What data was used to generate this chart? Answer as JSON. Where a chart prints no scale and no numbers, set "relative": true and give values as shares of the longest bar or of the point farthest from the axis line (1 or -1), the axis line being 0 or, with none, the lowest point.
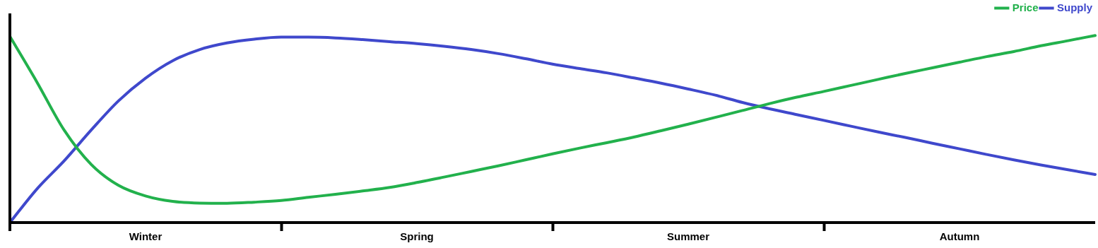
{
  "chart_data": {
    "type": "line",
    "relative": true,
    "legend": "top right",
    "marker": "none",
    "grid": false,
    "categories": [
      null,
      null,
      null,
      null,
      null,
      "Winter",
      null,
      null,
      null,
      null,
      null,
      null,
      null,
      null,
      null,
      "Spring",
      null,
      null,
      null,
      null,
      null,
      null,
      null,
      null,
      null,
      "Summer",
      null,
      null,
      null,
      null,
      null,
      null,
      null,
      null,
      null,
      "Autumn",
      null,
      null,
      null,
      null,
      null
    ],
    "series": [
      {
        "name": "Price",
        "color": "#22b14c",
        "values": [
          0.995,
          0.75,
          0.494,
          0.31,
          0.199,
          0.142,
          0.113,
          0.104,
          0.103,
          0.109,
          0.118,
          0.135,
          0.151,
          0.169,
          0.188,
          0.214,
          0.243,
          0.273,
          0.303,
          0.335,
          0.367,
          0.398,
          0.427,
          0.457,
          0.491,
          0.526,
          0.562,
          0.599,
          0.636,
          0.67,
          0.701,
          0.733,
          0.765,
          0.797,
          0.827,
          0.857,
          0.887,
          0.914,
          0.945,
          0.972,
          1
        ]
      },
      {
        "name": "Supply",
        "color": "#3f48cc",
        "values": [
          0,
          0.18,
          0.33,
          0.495,
          0.65,
          0.772,
          0.865,
          0.925,
          0.96,
          0.98,
          0.991,
          0.991,
          0.987,
          0.978,
          0.967,
          0.956,
          0.942,
          0.925,
          0.903,
          0.876,
          0.847,
          0.823,
          0.8,
          0.773,
          0.745,
          0.714,
          0.681,
          0.642,
          0.608,
          0.577,
          0.546,
          0.515,
          0.484,
          0.455,
          0.424,
          0.394,
          0.364,
          0.335,
          0.308,
          0.282,
          0.257
        ]
      }
    ]
  }
}
